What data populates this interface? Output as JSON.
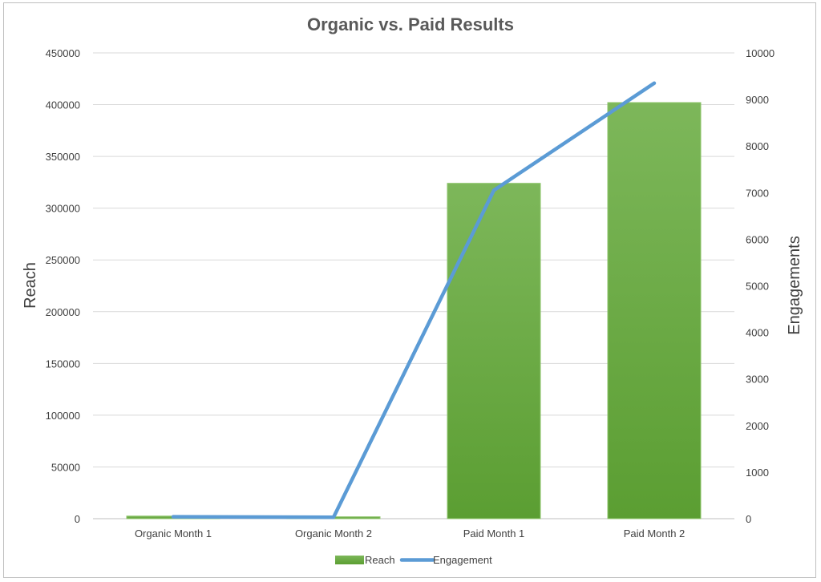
{
  "chart_data": {
    "type": "bar",
    "title": "Organic vs. Paid Results",
    "categories": [
      "Organic Month 1",
      "Organic Month 2",
      "Paid Month 1",
      "Paid Month 2"
    ],
    "series": [
      {
        "name": "Reach",
        "type": "bar",
        "axis": "left",
        "color": "#6aac3d",
        "values": [
          2500,
          1800,
          324000,
          402000
        ]
      },
      {
        "name": "Engagement",
        "type": "line",
        "axis": "right",
        "color": "#5b9bd5",
        "values": [
          40,
          30,
          7050,
          9350
        ]
      }
    ],
    "ylabel": "Reach",
    "ylabel_right": "Engagements",
    "xlabel": "",
    "ylim": [
      0,
      450000
    ],
    "ylim_right": [
      0,
      10000
    ],
    "yticks": [
      "0",
      "50000",
      "100000",
      "150000",
      "200000",
      "250000",
      "300000",
      "350000",
      "400000",
      "450000"
    ],
    "yticks_right": [
      "0",
      "1000",
      "2000",
      "3000",
      "4000",
      "5000",
      "6000",
      "7000",
      "8000",
      "9000",
      "10000"
    ],
    "grid": true,
    "legend": "bottom"
  }
}
